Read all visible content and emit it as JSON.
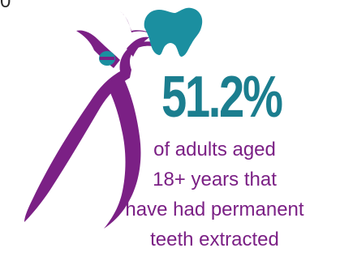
{
  "corner_fragment": "0",
  "stat": {
    "value": "51.2%",
    "caption_lines": [
      "of adults aged",
      "18+ years that",
      "have had permanent",
      "teeth extracted"
    ]
  },
  "colors": {
    "forceps": "#7b2085",
    "tooth": "#1b8fa0",
    "stat_value": "#1b7e8f",
    "caption": "#7b2085"
  },
  "icons": {
    "forceps": "dental-forceps-icon",
    "tooth": "tooth-icon"
  }
}
